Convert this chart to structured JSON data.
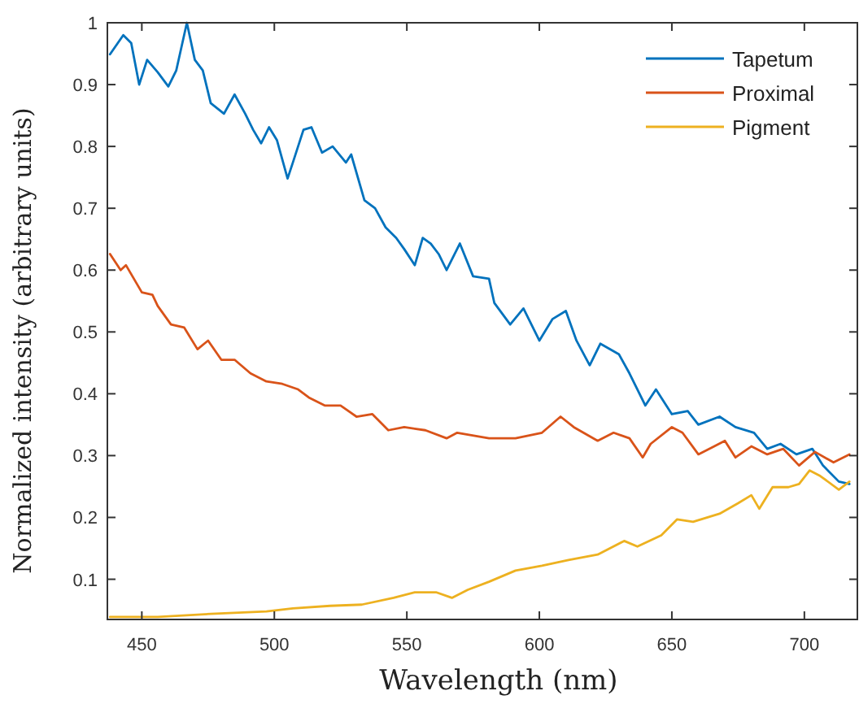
{
  "chart_data": {
    "type": "line",
    "xlabel": "Wavelength (nm)",
    "ylabel": "Normalized intensity (arbitrary units)",
    "xlim": [
      437,
      720
    ],
    "ylim": [
      0.035,
      1
    ],
    "xticks": [
      450,
      500,
      550,
      600,
      650,
      700
    ],
    "yticks": [
      0.1,
      0.2,
      0.3,
      0.4,
      0.5,
      0.6,
      0.7,
      0.8,
      0.9,
      1
    ],
    "grid": false,
    "legend": "top right",
    "marker": "none",
    "line_style": "solid",
    "series": [
      {
        "name": "Tapetum",
        "color": "#0072bd",
        "x": [
          438,
          443,
          446,
          449,
          452,
          456,
          460,
          463,
          467,
          470,
          473,
          476,
          481,
          485,
          489,
          492,
          495,
          498,
          501,
          505,
          507,
          511,
          514,
          518,
          522,
          527,
          529,
          534,
          538,
          542,
          546,
          549,
          553,
          556,
          559,
          562,
          565,
          570,
          575,
          581,
          583,
          589,
          594,
          600,
          605,
          610,
          614,
          619,
          623,
          630,
          634,
          640,
          644,
          650,
          656,
          660,
          668,
          674,
          681,
          686,
          691,
          697,
          703,
          707,
          713,
          717
        ],
        "values": [
          0.949,
          0.98,
          0.967,
          0.9,
          0.94,
          0.92,
          0.897,
          0.923,
          1.0,
          0.94,
          0.923,
          0.87,
          0.853,
          0.884,
          0.853,
          0.827,
          0.805,
          0.831,
          0.81,
          0.748,
          0.774,
          0.827,
          0.831,
          0.79,
          0.8,
          0.774,
          0.787,
          0.713,
          0.7,
          0.669,
          0.652,
          0.634,
          0.608,
          0.652,
          0.643,
          0.626,
          0.6,
          0.643,
          0.59,
          0.586,
          0.547,
          0.512,
          0.538,
          0.486,
          0.521,
          0.534,
          0.486,
          0.446,
          0.481,
          0.464,
          0.433,
          0.381,
          0.407,
          0.367,
          0.372,
          0.35,
          0.363,
          0.346,
          0.337,
          0.311,
          0.319,
          0.302,
          0.311,
          0.284,
          0.258,
          0.254
        ]
      },
      {
        "name": "Proximal",
        "color": "#d95319",
        "x": [
          438,
          442,
          444,
          450,
          454,
          456,
          461,
          466,
          471,
          475,
          480,
          485,
          491,
          497,
          503,
          509,
          513,
          519,
          525,
          531,
          537,
          543,
          549,
          557,
          565,
          569,
          581,
          591,
          601,
          608,
          613,
          622,
          628,
          634,
          639,
          642,
          650,
          654,
          660,
          666,
          670,
          674,
          680,
          686,
          692,
          698,
          704,
          711,
          717
        ],
        "values": [
          0.626,
          0.6,
          0.608,
          0.564,
          0.56,
          0.542,
          0.512,
          0.507,
          0.472,
          0.486,
          0.455,
          0.455,
          0.433,
          0.42,
          0.416,
          0.407,
          0.394,
          0.381,
          0.381,
          0.363,
          0.367,
          0.341,
          0.346,
          0.341,
          0.328,
          0.337,
          0.328,
          0.328,
          0.337,
          0.363,
          0.346,
          0.324,
          0.337,
          0.328,
          0.297,
          0.319,
          0.346,
          0.337,
          0.302,
          0.315,
          0.324,
          0.297,
          0.315,
          0.302,
          0.311,
          0.284,
          0.306,
          0.289,
          0.302
        ]
      },
      {
        "name": "Pigment",
        "color": "#edb120",
        "x": [
          438,
          456,
          476,
          497,
          507,
          521,
          533,
          545,
          553,
          561,
          567,
          573,
          581,
          591,
          601,
          611,
          622,
          632,
          637,
          646,
          652,
          658,
          668,
          675,
          680,
          683,
          688,
          694,
          698,
          702,
          706,
          713,
          717
        ],
        "values": [
          0.039,
          0.039,
          0.044,
          0.048,
          0.053,
          0.057,
          0.059,
          0.07,
          0.079,
          0.079,
          0.07,
          0.083,
          0.096,
          0.114,
          0.122,
          0.131,
          0.14,
          0.162,
          0.153,
          0.171,
          0.197,
          0.193,
          0.206,
          0.223,
          0.236,
          0.214,
          0.249,
          0.249,
          0.254,
          0.276,
          0.267,
          0.245,
          0.258
        ]
      }
    ]
  }
}
